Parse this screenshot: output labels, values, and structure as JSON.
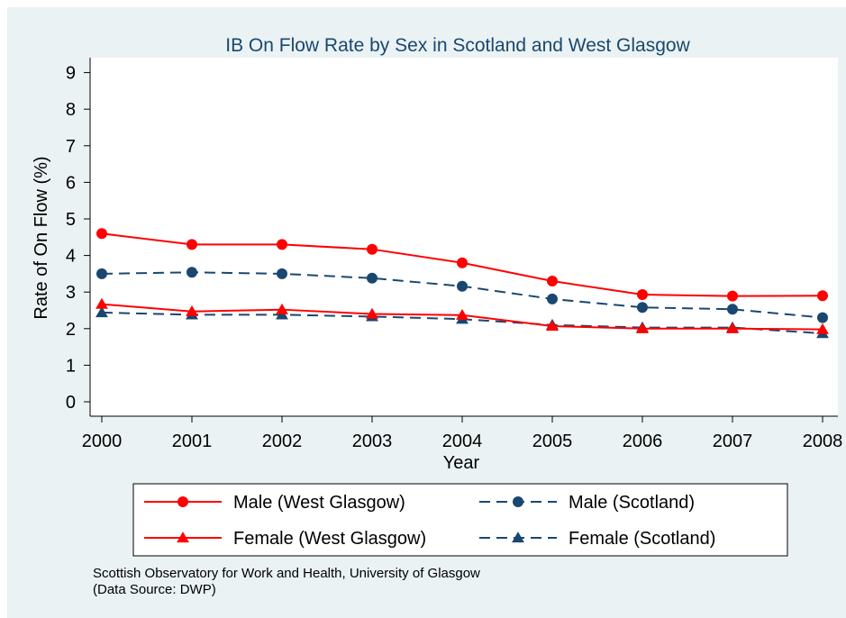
{
  "chart_data": {
    "type": "line",
    "title": "IB On Flow Rate by Sex in Scotland and West Glasgow",
    "xlabel": "Year",
    "ylabel": "Rate of On Flow (%)",
    "x": [
      "2000",
      "2001",
      "2002",
      "2003",
      "2004",
      "2005",
      "2006",
      "2007",
      "2008"
    ],
    "yticks": [
      "0",
      "1",
      "2",
      "3",
      "4",
      "5",
      "6",
      "7",
      "8",
      "9"
    ],
    "ylim": [
      0,
      9
    ],
    "grid": false,
    "legend_position": "bottom",
    "series": [
      {
        "name": "Male (West Glasgow)",
        "values": [
          4.6,
          4.3,
          4.3,
          4.17,
          3.8,
          3.3,
          2.93,
          2.89,
          2.9
        ],
        "color": "#ff0000",
        "marker": "circle",
        "dash": "solid"
      },
      {
        "name": "Male (Scotland)",
        "values": [
          3.5,
          3.54,
          3.5,
          3.38,
          3.16,
          2.81,
          2.58,
          2.53,
          2.3
        ],
        "color": "#1a476f",
        "marker": "circle",
        "dash": "dashed"
      },
      {
        "name": "Female (West Glasgow)",
        "values": [
          2.67,
          2.47,
          2.52,
          2.4,
          2.37,
          2.07,
          2.0,
          2.0,
          1.98
        ],
        "color": "#ff0000",
        "marker": "triangle",
        "dash": "solid"
      },
      {
        "name": "Female (Scotland)",
        "values": [
          2.44,
          2.38,
          2.38,
          2.33,
          2.26,
          2.1,
          2.03,
          2.03,
          1.87
        ],
        "color": "#1a476f",
        "marker": "triangle",
        "dash": "dashed"
      }
    ],
    "note": [
      "Scottish Observatory for Work and Health, University of Glasgow",
      "(Data Source: DWP)"
    ],
    "colors": {
      "background": "#eaf2f3",
      "plot_region": "#ffffff",
      "title": "#1a476f"
    }
  }
}
